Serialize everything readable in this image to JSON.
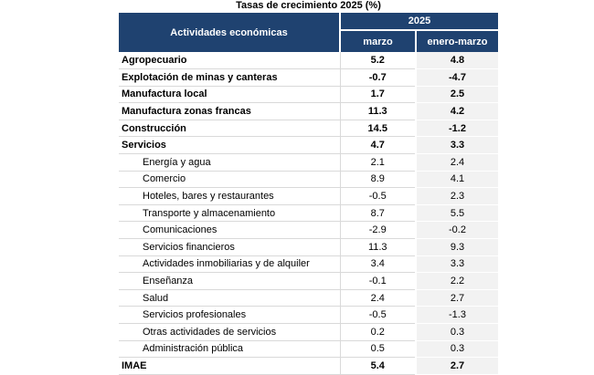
{
  "title": "Tasas de crecimiento 2025 (%)",
  "colors": {
    "header_bg": "#1F4270",
    "header_text": "#FFFFFF",
    "shaded_column_bg": "#F2F2F2",
    "row_divider": "#D9D9D9",
    "body_text": "#000000",
    "page_bg": "#FFFFFF"
  },
  "table": {
    "header": {
      "activities": "Actividades económicas",
      "year": "2025",
      "columns": [
        "marzo",
        "enero-marzo"
      ]
    },
    "rows": [
      {
        "label": "Agropecuario",
        "marzo": "5.2",
        "enero_marzo": "4.8",
        "bold": true,
        "indent": false
      },
      {
        "label": "Explotación de minas y canteras",
        "marzo": "-0.7",
        "enero_marzo": "-4.7",
        "bold": true,
        "indent": false
      },
      {
        "label": "Manufactura local",
        "marzo": "1.7",
        "enero_marzo": "2.5",
        "bold": true,
        "indent": false
      },
      {
        "label": "Manufactura zonas francas",
        "marzo": "11.3",
        "enero_marzo": "4.2",
        "bold": true,
        "indent": false
      },
      {
        "label": "Construcción",
        "marzo": "14.5",
        "enero_marzo": "-1.2",
        "bold": true,
        "indent": false
      },
      {
        "label": "Servicios",
        "marzo": "4.7",
        "enero_marzo": "3.3",
        "bold": true,
        "indent": false
      },
      {
        "label": "Energía y agua",
        "marzo": "2.1",
        "enero_marzo": "2.4",
        "bold": false,
        "indent": true
      },
      {
        "label": "Comercio",
        "marzo": "8.9",
        "enero_marzo": "4.1",
        "bold": false,
        "indent": true
      },
      {
        "label": "Hoteles, bares y restaurantes",
        "marzo": "-0.5",
        "enero_marzo": "2.3",
        "bold": false,
        "indent": true
      },
      {
        "label": "Transporte y almacenamiento",
        "marzo": "8.7",
        "enero_marzo": "5.5",
        "bold": false,
        "indent": true
      },
      {
        "label": "Comunicaciones",
        "marzo": "-2.9",
        "enero_marzo": "-0.2",
        "bold": false,
        "indent": true
      },
      {
        "label": "Servicios financieros",
        "marzo": "11.3",
        "enero_marzo": "9.3",
        "bold": false,
        "indent": true
      },
      {
        "label": "Actividades inmobiliarias y de alquiler",
        "marzo": "3.4",
        "enero_marzo": "3.3",
        "bold": false,
        "indent": true
      },
      {
        "label": "Enseñanza",
        "marzo": "-0.1",
        "enero_marzo": "2.2",
        "bold": false,
        "indent": true
      },
      {
        "label": "Salud",
        "marzo": "2.4",
        "enero_marzo": "2.7",
        "bold": false,
        "indent": true
      },
      {
        "label": "Servicios profesionales",
        "marzo": "-0.5",
        "enero_marzo": "-1.3",
        "bold": false,
        "indent": true
      },
      {
        "label": "Otras actividades de servicios",
        "marzo": "0.2",
        "enero_marzo": "0.3",
        "bold": false,
        "indent": true
      },
      {
        "label": "Administración pública",
        "marzo": "0.5",
        "enero_marzo": "0.3",
        "bold": false,
        "indent": true
      },
      {
        "label": "IMAE",
        "marzo": "5.4",
        "enero_marzo": "2.7",
        "bold": true,
        "indent": false
      }
    ]
  }
}
